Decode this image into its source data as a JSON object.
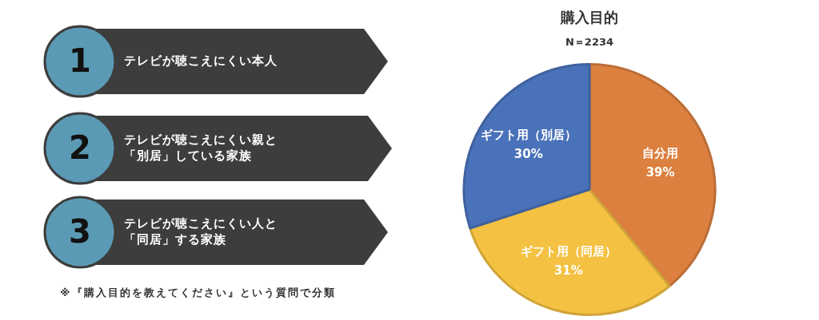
{
  "chart_data": [
    {
      "type": "other",
      "annotations": [
        "1",
        "テレビが聴こえにくい本人",
        "2",
        "テレビが聴こえにくい親と「別居」している家族",
        "3",
        "テレビが聴こえにくい人と「同居」する家族",
        "※『購入目的を教えてください』という質問で分類"
      ]
    },
    {
      "type": "pie",
      "title": "購入目的",
      "subtitle": "N＝2234",
      "categories": [
        "自分用",
        "ギフト用（同居）",
        "ギフト用（別居）"
      ],
      "values": [
        39,
        31,
        30
      ],
      "colors": [
        "#dc8040",
        "#f4c142",
        "#4a72ba"
      ],
      "value_labels": [
        "39%",
        "31%",
        "30%"
      ],
      "legend": false
    }
  ]
}
